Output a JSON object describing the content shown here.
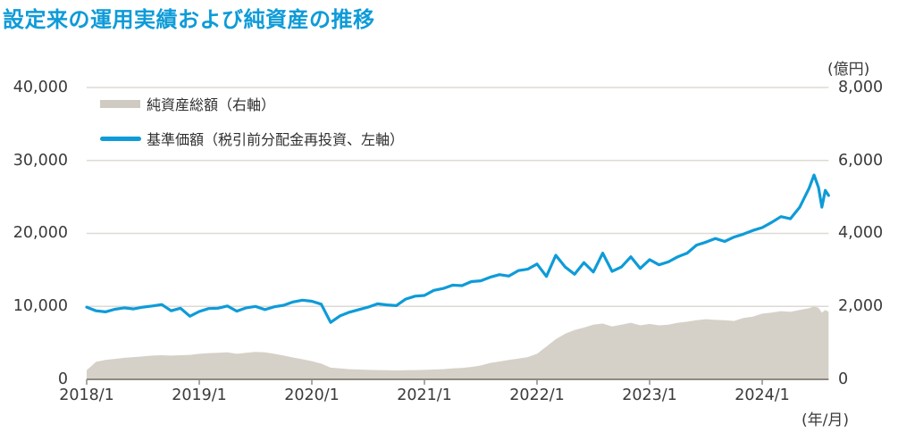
{
  "title": "設定来の運用実績および純資産の推移",
  "colors": {
    "accent": "#0e9bd8",
    "area": "#d5d1c8",
    "legend_area_swatch": "#cfcbc1",
    "grid": "#dedad3",
    "axis": "#8f8a81",
    "text": "#3a3a3a"
  },
  "legend": [
    {
      "label": "純資産総額（右軸）",
      "color": "#cfcbc1",
      "swatch": "area"
    },
    {
      "label": "基準価額（税引前分配金再投資、左軸）",
      "color": "#0e9bd8",
      "swatch": "line"
    }
  ],
  "chart_data": {
    "type": "line",
    "title": "設定来の運用実績および純資産の推移",
    "grid": "horizontal",
    "legend_position": "top-left-inside",
    "x_axis": {
      "tick_labels": [
        "2018/1",
        "2019/1",
        "2020/1",
        "2021/1",
        "2022/1",
        "2023/1",
        "2024/1"
      ],
      "tick_values": [
        2018,
        2019,
        2020,
        2021,
        2022,
        2023,
        2024
      ],
      "unit": "(年/月)",
      "range": [
        2018,
        2024.59
      ]
    },
    "y_left_axis": {
      "tick_labels": [
        "40,000",
        "30,000",
        "20,000",
        "10,000",
        "0"
      ],
      "tick_values": [
        40000,
        30000,
        20000,
        10000,
        0
      ],
      "range": [
        0,
        40000
      ],
      "applies_to": "基準価額（円）"
    },
    "y_right_axis": {
      "tick_labels": [
        "8,000",
        "6,000",
        "4,000",
        "2,000",
        "0"
      ],
      "tick_values": [
        8000,
        6000,
        4000,
        2000,
        0
      ],
      "range": [
        0,
        8000
      ],
      "unit": "(億円)",
      "applies_to": "純資産総額（億円）"
    },
    "series": [
      {
        "name": "純資産総額（右軸）",
        "type": "area",
        "axis": "right",
        "color": "#d5d1c8",
        "x": [
          2018.0,
          2018.083,
          2018.167,
          2018.25,
          2018.333,
          2018.417,
          2018.5,
          2018.583,
          2018.667,
          2018.75,
          2018.833,
          2018.917,
          2019.0,
          2019.083,
          2019.167,
          2019.25,
          2019.333,
          2019.417,
          2019.5,
          2019.583,
          2019.667,
          2019.75,
          2019.833,
          2019.917,
          2020.0,
          2020.083,
          2020.167,
          2020.25,
          2020.333,
          2020.417,
          2020.5,
          2020.583,
          2020.667,
          2020.75,
          2020.833,
          2020.917,
          2021.0,
          2021.083,
          2021.167,
          2021.25,
          2021.333,
          2021.417,
          2021.5,
          2021.583,
          2021.667,
          2021.75,
          2021.833,
          2021.917,
          2022.0,
          2022.083,
          2022.167,
          2022.25,
          2022.333,
          2022.417,
          2022.5,
          2022.583,
          2022.667,
          2022.75,
          2022.833,
          2022.917,
          2023.0,
          2023.083,
          2023.167,
          2023.25,
          2023.333,
          2023.417,
          2023.5,
          2023.583,
          2023.667,
          2023.75,
          2023.833,
          2023.917,
          2024.0,
          2024.083,
          2024.167,
          2024.25,
          2024.333,
          2024.417,
          2024.46,
          2024.5,
          2024.53,
          2024.56,
          2024.59
        ],
        "values": [
          250,
          480,
          530,
          560,
          590,
          610,
          630,
          650,
          660,
          650,
          660,
          670,
          700,
          720,
          730,
          740,
          700,
          730,
          750,
          740,
          700,
          650,
          600,
          550,
          500,
          430,
          320,
          300,
          280,
          270,
          260,
          255,
          250,
          245,
          250,
          255,
          260,
          270,
          280,
          300,
          310,
          340,
          380,
          450,
          490,
          530,
          570,
          610,
          700,
          900,
          1100,
          1250,
          1350,
          1420,
          1500,
          1530,
          1450,
          1500,
          1550,
          1480,
          1520,
          1480,
          1500,
          1550,
          1580,
          1620,
          1650,
          1630,
          1620,
          1600,
          1680,
          1720,
          1800,
          1830,
          1870,
          1850,
          1900,
          1950,
          2000,
          1960,
          1830,
          1900,
          1850
        ]
      },
      {
        "name": "基準価額（税引前分配金再投資、左軸）",
        "type": "line",
        "axis": "left",
        "color": "#0e9bd8",
        "x": [
          2018.0,
          2018.083,
          2018.167,
          2018.25,
          2018.333,
          2018.417,
          2018.5,
          2018.583,
          2018.667,
          2018.75,
          2018.833,
          2018.917,
          2019.0,
          2019.083,
          2019.167,
          2019.25,
          2019.333,
          2019.417,
          2019.5,
          2019.583,
          2019.667,
          2019.75,
          2019.833,
          2019.917,
          2020.0,
          2020.083,
          2020.167,
          2020.25,
          2020.333,
          2020.417,
          2020.5,
          2020.583,
          2020.667,
          2020.75,
          2020.833,
          2020.917,
          2021.0,
          2021.083,
          2021.167,
          2021.25,
          2021.333,
          2021.417,
          2021.5,
          2021.583,
          2021.667,
          2021.75,
          2021.833,
          2021.917,
          2022.0,
          2022.083,
          2022.167,
          2022.25,
          2022.333,
          2022.417,
          2022.5,
          2022.583,
          2022.667,
          2022.75,
          2022.833,
          2022.917,
          2023.0,
          2023.083,
          2023.167,
          2023.25,
          2023.333,
          2023.417,
          2023.5,
          2023.583,
          2023.667,
          2023.75,
          2023.833,
          2023.917,
          2024.0,
          2024.083,
          2024.167,
          2024.25,
          2024.333,
          2024.417,
          2024.46,
          2024.5,
          2024.53,
          2024.56,
          2024.59
        ],
        "values": [
          9900,
          9400,
          9250,
          9600,
          9800,
          9650,
          9900,
          10050,
          10250,
          9400,
          9750,
          8650,
          9300,
          9700,
          9750,
          10050,
          9350,
          9800,
          10000,
          9550,
          9950,
          10150,
          10600,
          10850,
          10700,
          10300,
          7800,
          8700,
          9200,
          9550,
          9900,
          10350,
          10200,
          10100,
          11000,
          11400,
          11500,
          12200,
          12450,
          12900,
          12850,
          13400,
          13500,
          14000,
          14350,
          14150,
          14900,
          15100,
          15800,
          14100,
          17000,
          15400,
          14400,
          16000,
          14700,
          17300,
          14800,
          15400,
          16800,
          15200,
          16400,
          15700,
          16100,
          16800,
          17300,
          18400,
          18800,
          19300,
          18900,
          19500,
          19900,
          20400,
          20800,
          21500,
          22300,
          22000,
          23600,
          26200,
          28000,
          26300,
          23600,
          25900,
          25200
        ]
      }
    ]
  }
}
